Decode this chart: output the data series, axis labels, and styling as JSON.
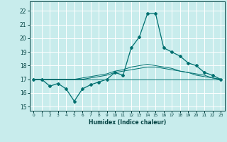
{
  "xlabel": "Humidex (Indice chaleur)",
  "background_color": "#c8ecec",
  "grid_color": "#ffffff",
  "line_color": "#007070",
  "xlim": [
    -0.5,
    23.5
  ],
  "ylim": [
    14.7,
    22.7
  ],
  "yticks": [
    15,
    16,
    17,
    18,
    19,
    20,
    21,
    22
  ],
  "xticks": [
    0,
    1,
    2,
    3,
    4,
    5,
    6,
    7,
    8,
    9,
    10,
    11,
    12,
    13,
    14,
    15,
    16,
    17,
    18,
    19,
    20,
    21,
    22,
    23
  ],
  "series": [
    [
      17.0,
      17.0,
      16.5,
      16.7,
      16.3,
      15.4,
      16.3,
      16.6,
      16.8,
      17.0,
      17.5,
      17.3,
      19.3,
      20.1,
      21.8,
      21.8,
      19.3,
      19.0,
      18.7,
      18.2,
      18.0,
      17.5,
      17.3,
      17.0
    ],
    [
      17.0,
      17.0,
      17.0,
      17.0,
      17.0,
      17.0,
      17.0,
      17.1,
      17.2,
      17.3,
      17.5,
      17.6,
      17.7,
      17.8,
      17.9,
      17.9,
      17.8,
      17.7,
      17.6,
      17.5,
      17.4,
      17.3,
      17.1,
      17.0
    ],
    [
      17.0,
      17.0,
      17.0,
      17.0,
      17.0,
      17.0,
      17.1,
      17.2,
      17.3,
      17.4,
      17.6,
      17.7,
      17.9,
      18.0,
      18.1,
      18.0,
      17.9,
      17.8,
      17.6,
      17.5,
      17.3,
      17.2,
      17.1,
      17.0
    ],
    [
      17.0,
      17.0,
      17.0,
      17.0,
      17.0,
      17.0,
      17.0,
      17.0,
      17.0,
      17.0,
      17.0,
      17.0,
      17.0,
      17.0,
      17.0,
      17.0,
      17.0,
      17.0,
      17.0,
      17.0,
      17.0,
      17.0,
      17.0,
      17.0
    ]
  ]
}
